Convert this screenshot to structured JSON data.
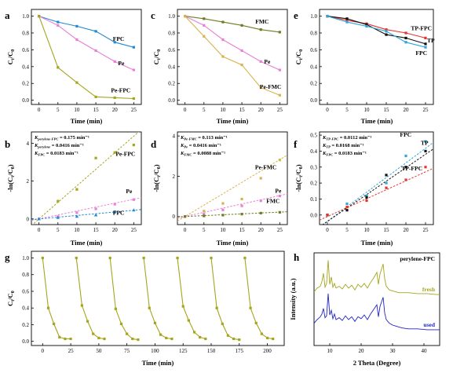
{
  "chart_data": [
    {
      "id": "a",
      "panel_label": "a",
      "type": "line",
      "xlabel": "Time (min)",
      "ylabel": "Ct/C0",
      "xlim": [
        -2,
        27
      ],
      "ylim": [
        -0.05,
        1.08
      ],
      "xticks": [
        0,
        5,
        10,
        15,
        20,
        25
      ],
      "yticks": [
        0.0,
        0.2,
        0.4,
        0.6,
        0.8,
        1.0
      ],
      "series": [
        {
          "name": "FPC",
          "color": "#1f8bd1",
          "marker": "square",
          "x": [
            0,
            5,
            10,
            15,
            20,
            25
          ],
          "y": [
            1.0,
            0.93,
            0.88,
            0.82,
            0.69,
            0.63
          ]
        },
        {
          "name": "Pe",
          "color": "#e87fd6",
          "marker": "square",
          "x": [
            0,
            5,
            10,
            15,
            20,
            25
          ],
          "y": [
            1.0,
            0.89,
            0.72,
            0.59,
            0.46,
            0.36
          ]
        },
        {
          "name": "Pe-FPC",
          "color": "#a6a51c",
          "marker": "square",
          "x": [
            0,
            5,
            10,
            15,
            20,
            25
          ],
          "y": [
            1.0,
            0.39,
            0.21,
            0.04,
            0.03,
            0.02
          ]
        }
      ]
    },
    {
      "id": "c",
      "panel_label": "c",
      "type": "line",
      "xlabel": "Time (min)",
      "ylabel": "Ct/C0",
      "xlim": [
        -2,
        27
      ],
      "ylim": [
        -0.05,
        1.08
      ],
      "xticks": [
        0,
        5,
        10,
        15,
        20,
        25
      ],
      "yticks": [
        0.0,
        0.2,
        0.4,
        0.6,
        0.8,
        1.0
      ],
      "series": [
        {
          "name": "FMC",
          "color": "#6e7b22",
          "marker": "square",
          "x": [
            0,
            5,
            10,
            15,
            20,
            25
          ],
          "y": [
            1.0,
            0.97,
            0.93,
            0.89,
            0.84,
            0.81
          ]
        },
        {
          "name": "Pe",
          "color": "#e87fd6",
          "marker": "square",
          "x": [
            0,
            5,
            10,
            15,
            20,
            25
          ],
          "y": [
            1.0,
            0.89,
            0.72,
            0.59,
            0.46,
            0.36
          ]
        },
        {
          "name": "Pe-FMC",
          "color": "#d8b24c",
          "marker": "square",
          "x": [
            0,
            5,
            10,
            15,
            20,
            25
          ],
          "y": [
            1.0,
            0.76,
            0.52,
            0.42,
            0.15,
            0.06
          ]
        }
      ]
    },
    {
      "id": "e",
      "panel_label": "e",
      "type": "line",
      "xlabel": "Time (min)",
      "ylabel": "Ct/C0",
      "xlim": [
        -2,
        27
      ],
      "ylim": [
        -0.05,
        1.08
      ],
      "xticks": [
        0,
        5,
        10,
        15,
        20,
        25
      ],
      "yticks": [
        0.0,
        0.2,
        0.4,
        0.6,
        0.8,
        1.0
      ],
      "series": [
        {
          "name": "TP-FPC",
          "color": "#e8322e",
          "marker": "square",
          "x": [
            0,
            5,
            10,
            15,
            20,
            25
          ],
          "y": [
            1.0,
            0.95,
            0.91,
            0.84,
            0.8,
            0.74
          ]
        },
        {
          "name": "TP",
          "color": "#111111",
          "marker": "square",
          "x": [
            0,
            5,
            10,
            15,
            20,
            25
          ],
          "y": [
            1.0,
            0.97,
            0.9,
            0.78,
            0.74,
            0.67
          ]
        },
        {
          "name": "FPC",
          "color": "#2ea6d6",
          "marker": "square",
          "x": [
            0,
            5,
            10,
            15,
            20,
            25
          ],
          "y": [
            1.0,
            0.93,
            0.88,
            0.82,
            0.69,
            0.63
          ]
        }
      ]
    },
    {
      "id": "b",
      "panel_label": "b",
      "type": "scatter",
      "xlabel": "Time (min)",
      "ylabel": "-ln(Ct/C0)",
      "xlim": [
        -2,
        27
      ],
      "ylim": [
        -0.3,
        4.6
      ],
      "xticks": [
        0,
        5,
        10,
        15,
        20,
        25
      ],
      "yticks": [
        0,
        2,
        4
      ],
      "annotations": [
        {
          "sym": "K",
          "sub": "perylene-FPC",
          "value": "= 0.175 min⁻¹"
        },
        {
          "sym": "K",
          "sub": "perylene",
          "value": "= 0.0416 min⁻¹"
        },
        {
          "sym": "K",
          "sub": "FPC",
          "value": "= 0.0183 min⁻¹"
        }
      ],
      "series": [
        {
          "name": "Pe-FPC",
          "color": "#a6a51c",
          "marker": "square",
          "x": [
            0,
            5,
            10,
            15,
            20,
            25
          ],
          "y": [
            0,
            0.94,
            1.56,
            3.22,
            3.51,
            3.91
          ],
          "fit": [
            0,
            0.175
          ]
        },
        {
          "name": "Pe",
          "color": "#e87fd6",
          "marker": "square",
          "x": [
            0,
            5,
            10,
            15,
            20,
            25
          ],
          "y": [
            0,
            0.12,
            0.33,
            0.53,
            0.78,
            1.02
          ],
          "fit": [
            0,
            0.0416
          ]
        },
        {
          "name": "FPC",
          "color": "#1f8bd1",
          "marker": "triangle",
          "x": [
            0,
            5,
            10,
            15,
            20,
            25
          ],
          "y": [
            0,
            0.07,
            0.13,
            0.2,
            0.37,
            0.46
          ],
          "fit": [
            0,
            0.0183
          ]
        }
      ]
    },
    {
      "id": "d",
      "panel_label": "d",
      "type": "scatter",
      "xlabel": "Time (min)",
      "ylabel": "-ln(Ct/C0)",
      "xlim": [
        -2,
        27
      ],
      "ylim": [
        -0.4,
        4.2
      ],
      "xticks": [
        0,
        5,
        10,
        15,
        20,
        25
      ],
      "yticks": [
        0,
        2,
        4
      ],
      "annotations": [
        {
          "sym": "K",
          "sub": "Pe-FMC",
          "value": "= 0.113 min⁻¹"
        },
        {
          "sym": "K",
          "sub": "Pe",
          "value": "= 0.0416 min⁻¹"
        },
        {
          "sym": "K",
          "sub": "FMC",
          "value": "= 0.0088 min⁻¹"
        }
      ],
      "series": [
        {
          "name": "Pe-FMC",
          "color": "#d8b24c",
          "marker": "square",
          "x": [
            0,
            5,
            10,
            15,
            20,
            25
          ],
          "y": [
            0,
            0.27,
            0.65,
            0.87,
            1.9,
            2.81
          ],
          "fit": [
            0,
            0.113
          ]
        },
        {
          "name": "Pe",
          "color": "#e87fd6",
          "marker": "square",
          "x": [
            0,
            5,
            10,
            15,
            20,
            25
          ],
          "y": [
            0,
            0.12,
            0.33,
            0.53,
            0.78,
            1.02
          ],
          "fit": [
            0,
            0.0416
          ]
        },
        {
          "name": "FMC",
          "color": "#6e7b22",
          "marker": "square",
          "x": [
            0,
            5,
            10,
            15,
            20,
            25
          ],
          "y": [
            0,
            0.03,
            0.07,
            0.12,
            0.17,
            0.21
          ],
          "fit": [
            0,
            0.0088
          ]
        }
      ]
    },
    {
      "id": "f",
      "panel_label": "f",
      "type": "scatter",
      "xlabel": "Time (min)",
      "ylabel": "-ln(Ct/C0)",
      "xlim": [
        -2,
        27
      ],
      "ylim": [
        -0.06,
        0.52
      ],
      "xticks": [
        0,
        5,
        10,
        15,
        20,
        25
      ],
      "yticks": [
        0.0,
        0.1,
        0.2,
        0.3,
        0.4,
        0.5
      ],
      "annotations": [
        {
          "sym": "K",
          "sub": "TP-FPC",
          "value": "= 0.0112 min⁻¹"
        },
        {
          "sym": "K",
          "sub": "TP",
          "value": "= 0.0168 min⁻¹"
        },
        {
          "sym": "K",
          "sub": "FPC",
          "value": "= 0.0183 min⁻¹"
        }
      ],
      "series": [
        {
          "name": "FPC",
          "color": "#2ea6d6",
          "marker": "square",
          "x": [
            0,
            5,
            10,
            15,
            20,
            25
          ],
          "y": [
            0,
            0.07,
            0.12,
            0.2,
            0.37,
            0.46
          ],
          "fit": [
            -0.04,
            0.0183
          ]
        },
        {
          "name": "TP",
          "color": "#111111",
          "marker": "square",
          "x": [
            0,
            5,
            10,
            15,
            20,
            25
          ],
          "y": [
            0,
            0.03,
            0.11,
            0.25,
            0.3,
            0.4
          ],
          "fit": [
            -0.04,
            0.0168
          ]
        },
        {
          "name": "TP-FPC",
          "color": "#e8322e",
          "marker": "square",
          "x": [
            0,
            5,
            10,
            15,
            20,
            25
          ],
          "y": [
            0,
            0.05,
            0.09,
            0.17,
            0.22,
            0.3
          ],
          "fit": [
            -0.01,
            0.0112
          ]
        }
      ]
    },
    {
      "id": "g",
      "panel_label": "g",
      "type": "line",
      "xlabel": "Time (min)",
      "ylabel": "Ct/C0",
      "xlim": [
        -10,
        215
      ],
      "ylim": [
        -0.05,
        1.08
      ],
      "xticks": [
        0,
        25,
        50,
        75,
        100,
        125,
        150,
        175,
        200
      ],
      "yticks": [
        0.0,
        0.2,
        0.4,
        0.6,
        0.8,
        1.0
      ],
      "series": [
        {
          "name": "cycle 1",
          "color": "#a6a51c",
          "marker": "square",
          "x": [
            0,
            5,
            10,
            15,
            20,
            25
          ],
          "y": [
            1.0,
            0.4,
            0.21,
            0.05,
            0.03,
            0.03
          ]
        },
        {
          "name": "cycle 2",
          "color": "#a6a51c",
          "marker": "square",
          "x": [
            30,
            35,
            40,
            45,
            50,
            55
          ],
          "y": [
            1.0,
            0.43,
            0.24,
            0.09,
            0.04,
            0.03
          ]
        },
        {
          "name": "cycle 3",
          "color": "#a6a51c",
          "marker": "square",
          "x": [
            60,
            65,
            70,
            75,
            80,
            85
          ],
          "y": [
            1.0,
            0.39,
            0.21,
            0.09,
            0.03,
            0.02
          ]
        },
        {
          "name": "cycle 4",
          "color": "#a6a51c",
          "marker": "square",
          "x": [
            90,
            95,
            100,
            105,
            110,
            115
          ],
          "y": [
            1.0,
            0.4,
            0.22,
            0.08,
            0.04,
            0.03
          ]
        },
        {
          "name": "cycle 5",
          "color": "#a6a51c",
          "marker": "square",
          "x": [
            120,
            125,
            130,
            135,
            140,
            145
          ],
          "y": [
            1.0,
            0.42,
            0.25,
            0.11,
            0.05,
            0.03
          ]
        },
        {
          "name": "cycle 6",
          "color": "#a6a51c",
          "marker": "square",
          "x": [
            150,
            155,
            160,
            165,
            170,
            175
          ],
          "y": [
            1.0,
            0.4,
            0.21,
            0.07,
            0.03,
            0.02
          ]
        },
        {
          "name": "cycle 7",
          "color": "#a6a51c",
          "marker": "square",
          "x": [
            180,
            185,
            190,
            195,
            200,
            205
          ],
          "y": [
            1.0,
            0.4,
            0.22,
            0.09,
            0.04,
            0.03
          ]
        }
      ]
    },
    {
      "id": "h",
      "panel_label": "h",
      "type": "line",
      "title": "perylene-FPC",
      "xlabel": "2 Theta (Degree)",
      "ylabel": "Intensity (a.u.)",
      "xlim": [
        5,
        45
      ],
      "ylim": [
        0,
        100
      ],
      "xticks": [
        10,
        20,
        30,
        40
      ],
      "yticks": [],
      "series": [
        {
          "name": "fresh",
          "color": "#a6a51c",
          "x": [
            5,
            6,
            7,
            7.5,
            8,
            8.5,
            9,
            9.5,
            10,
            10.5,
            11,
            11.5,
            12,
            13,
            14,
            15,
            16,
            17,
            18,
            19,
            20,
            21,
            22,
            23,
            24,
            25,
            25.5,
            26,
            27,
            27.5,
            28,
            29,
            30,
            31,
            32,
            33,
            35,
            38,
            41,
            44,
            45
          ],
          "y": [
            58,
            62,
            64,
            69,
            78,
            63,
            67,
            92,
            66,
            74,
            63,
            67,
            62,
            64,
            61,
            66,
            62,
            65,
            60,
            66,
            63,
            67,
            62,
            68,
            73,
            79,
            66,
            77,
            88,
            72,
            64,
            60,
            59,
            58,
            57,
            57,
            57,
            56,
            56,
            55,
            55
          ]
        },
        {
          "name": "used",
          "color": "#2323c8",
          "x": [
            5,
            6,
            7,
            7.5,
            8,
            8.5,
            9,
            9.5,
            10,
            10.5,
            11,
            11.5,
            12,
            13,
            14,
            15,
            16,
            17,
            18,
            19,
            20,
            21,
            22,
            23,
            24,
            25,
            25.5,
            26,
            27,
            27.5,
            28,
            29,
            30,
            31,
            32,
            33,
            35,
            38,
            41,
            44,
            45
          ],
          "y": [
            24,
            28,
            31,
            34,
            40,
            30,
            32,
            56,
            33,
            38,
            29,
            34,
            28,
            30,
            27,
            32,
            28,
            31,
            26,
            31,
            29,
            33,
            28,
            34,
            39,
            44,
            31,
            42,
            52,
            35,
            28,
            24,
            22,
            21,
            20,
            19,
            18,
            18,
            17,
            17,
            17
          ]
        }
      ]
    }
  ]
}
